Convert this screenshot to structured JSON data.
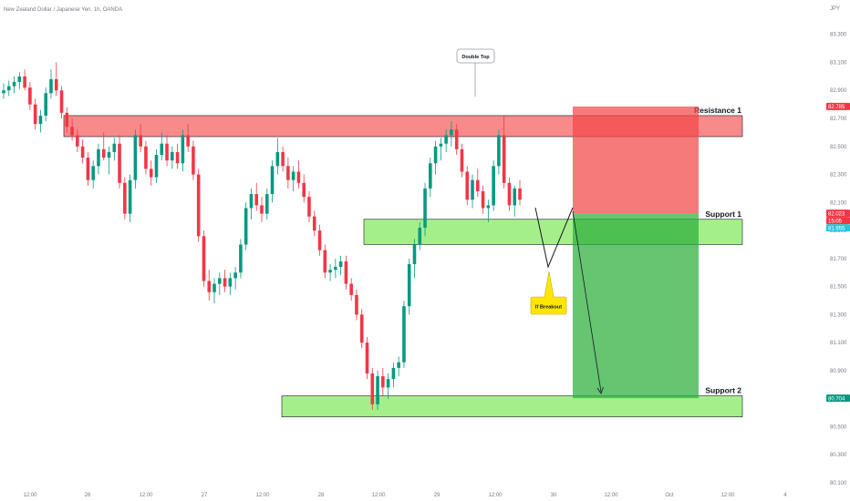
{
  "chart_data": {
    "type": "candlestick",
    "title": "New Zealand Dollar / Japanese Yen, 1h, OANDA",
    "currency_label": "JPY",
    "x_ticks": [
      "12:00",
      "26",
      "12:00",
      "27",
      "12:00",
      "28",
      "12:00",
      "29",
      "12:00",
      "30",
      "12:00",
      "Oct",
      "12:00",
      "4"
    ],
    "y_ticks": [
      "83.300",
      "83.100",
      "82.900",
      "82.700",
      "82.500",
      "82.300",
      "82.100",
      "81.900",
      "81.700",
      "81.500",
      "81.300",
      "81.100",
      "80.900",
      "80.700",
      "80.500",
      "80.300",
      "80.100"
    ],
    "ylim": [
      80.1,
      83.35
    ],
    "candles": [
      [
        82.88,
        82.95,
        82.84,
        82.9
      ],
      [
        82.9,
        82.97,
        82.86,
        82.93
      ],
      [
        82.93,
        83.0,
        82.88,
        82.96
      ],
      [
        82.96,
        83.03,
        82.91,
        83.0
      ],
      [
        83.0,
        83.05,
        82.9,
        82.92
      ],
      [
        82.92,
        82.96,
        82.76,
        82.8
      ],
      [
        82.8,
        82.84,
        82.62,
        82.66
      ],
      [
        82.66,
        82.76,
        82.6,
        82.72
      ],
      [
        82.72,
        82.92,
        82.68,
        82.88
      ],
      [
        82.88,
        83.05,
        82.84,
        82.98
      ],
      [
        82.98,
        83.1,
        82.86,
        82.9
      ],
      [
        82.9,
        82.93,
        82.7,
        82.74
      ],
      [
        82.74,
        82.78,
        82.6,
        82.64
      ],
      [
        82.64,
        82.7,
        82.54,
        82.58
      ],
      [
        82.58,
        82.62,
        82.46,
        82.5
      ],
      [
        82.5,
        82.55,
        82.38,
        82.42
      ],
      [
        82.42,
        82.46,
        82.22,
        82.26
      ],
      [
        82.26,
        82.4,
        82.2,
        82.36
      ],
      [
        82.36,
        82.52,
        82.3,
        82.48
      ],
      [
        82.48,
        82.6,
        82.4,
        82.42
      ],
      [
        82.42,
        82.5,
        82.3,
        82.46
      ],
      [
        82.46,
        82.56,
        82.4,
        82.52
      ],
      [
        82.52,
        82.58,
        82.2,
        82.24
      ],
      [
        82.24,
        82.28,
        81.98,
        82.02
      ],
      [
        82.02,
        82.3,
        81.96,
        82.26
      ],
      [
        82.26,
        82.62,
        82.2,
        82.58
      ],
      [
        82.58,
        82.66,
        82.46,
        82.5
      ],
      [
        82.5,
        82.54,
        82.3,
        82.34
      ],
      [
        82.34,
        82.4,
        82.22,
        82.28
      ],
      [
        82.28,
        82.48,
        82.24,
        82.44
      ],
      [
        82.44,
        82.6,
        82.4,
        82.52
      ],
      [
        82.52,
        82.58,
        82.36,
        82.4
      ],
      [
        82.4,
        82.5,
        82.34,
        82.46
      ],
      [
        82.46,
        82.52,
        82.34,
        82.38
      ],
      [
        82.38,
        82.62,
        82.32,
        82.58
      ],
      [
        82.58,
        82.66,
        82.46,
        82.5
      ],
      [
        82.5,
        82.54,
        82.26,
        82.3
      ],
      [
        82.3,
        82.34,
        81.82,
        81.86
      ],
      [
        81.86,
        81.9,
        81.5,
        81.54
      ],
      [
        81.54,
        81.62,
        81.4,
        81.46
      ],
      [
        81.46,
        81.56,
        81.38,
        81.52
      ],
      [
        81.52,
        81.6,
        81.44,
        81.56
      ],
      [
        81.56,
        81.62,
        81.46,
        81.5
      ],
      [
        81.5,
        81.6,
        81.44,
        81.56
      ],
      [
        81.56,
        81.64,
        81.48,
        81.6
      ],
      [
        81.6,
        81.84,
        81.56,
        81.8
      ],
      [
        81.8,
        82.1,
        81.76,
        82.06
      ],
      [
        82.06,
        82.2,
        81.98,
        82.16
      ],
      [
        82.16,
        82.24,
        82.04,
        82.08
      ],
      [
        82.08,
        82.14,
        81.96,
        82.02
      ],
      [
        82.02,
        82.2,
        81.98,
        82.16
      ],
      [
        82.16,
        82.4,
        82.1,
        82.36
      ],
      [
        82.36,
        82.56,
        82.3,
        82.46
      ],
      [
        82.46,
        82.5,
        82.32,
        82.36
      ],
      [
        82.36,
        82.42,
        82.2,
        82.26
      ],
      [
        82.26,
        82.36,
        82.18,
        82.32
      ],
      [
        82.32,
        82.4,
        82.2,
        82.24
      ],
      [
        82.24,
        82.3,
        82.1,
        82.14
      ],
      [
        82.14,
        82.18,
        81.96,
        82.0
      ],
      [
        82.0,
        82.04,
        81.86,
        81.9
      ],
      [
        81.9,
        81.94,
        81.72,
        81.76
      ],
      [
        81.76,
        81.8,
        81.56,
        81.6
      ],
      [
        81.6,
        81.66,
        81.54,
        81.62
      ],
      [
        81.62,
        81.7,
        81.56,
        81.64
      ],
      [
        81.64,
        81.72,
        81.58,
        81.68
      ],
      [
        81.68,
        81.72,
        81.48,
        81.52
      ],
      [
        81.52,
        81.56,
        81.4,
        81.44
      ],
      [
        81.44,
        81.48,
        81.26,
        81.3
      ],
      [
        81.3,
        81.34,
        81.06,
        81.1
      ],
      [
        81.1,
        81.14,
        80.84,
        80.88
      ],
      [
        80.88,
        80.92,
        80.62,
        80.66
      ],
      [
        80.66,
        80.9,
        80.62,
        80.86
      ],
      [
        80.86,
        80.92,
        80.72,
        80.78
      ],
      [
        80.78,
        80.88,
        80.7,
        80.84
      ],
      [
        80.84,
        80.96,
        80.78,
        80.92
      ],
      [
        80.92,
        81.0,
        80.86,
        80.96
      ],
      [
        80.96,
        81.4,
        80.92,
        81.36
      ],
      [
        81.36,
        81.7,
        81.3,
        81.66
      ],
      [
        81.66,
        81.84,
        81.56,
        81.8
      ],
      [
        81.8,
        81.96,
        81.76,
        81.92
      ],
      [
        81.92,
        82.24,
        81.86,
        82.2
      ],
      [
        82.2,
        82.42,
        82.14,
        82.38
      ],
      [
        82.38,
        82.54,
        82.3,
        82.5
      ],
      [
        82.5,
        82.56,
        82.4,
        82.52
      ],
      [
        82.52,
        82.62,
        82.46,
        82.58
      ],
      [
        82.58,
        82.68,
        82.5,
        82.62
      ],
      [
        82.62,
        82.66,
        82.44,
        82.48
      ],
      [
        82.48,
        82.52,
        82.28,
        82.32
      ],
      [
        82.32,
        82.36,
        82.08,
        82.12
      ],
      [
        82.12,
        82.3,
        82.06,
        82.26
      ],
      [
        82.26,
        82.34,
        82.14,
        82.18
      ],
      [
        82.18,
        82.22,
        82.02,
        82.06
      ],
      [
        82.06,
        82.12,
        81.96,
        82.08
      ],
      [
        82.08,
        82.4,
        82.04,
        82.36
      ],
      [
        82.36,
        82.62,
        82.3,
        82.58
      ],
      [
        82.58,
        82.72,
        82.2,
        82.24
      ],
      [
        82.24,
        82.28,
        82.04,
        82.08
      ],
      [
        82.08,
        82.22,
        82.0,
        82.2
      ],
      [
        82.2,
        82.26,
        82.08,
        82.12
      ]
    ],
    "zones": [
      {
        "name": "Resistance 1",
        "top": 82.72,
        "bottom": 82.57,
        "type": "resistance"
      },
      {
        "name": "Support 1",
        "top": 81.98,
        "bottom": 81.8,
        "type": "support"
      },
      {
        "name": "Support 2",
        "top": 80.72,
        "bottom": 80.57,
        "type": "support"
      }
    ],
    "annotations": {
      "double_top": "Double Top",
      "if_breakout": "If Breakout"
    },
    "trade": {
      "stop": 82.785,
      "entry": 82.023,
      "target": 80.704
    },
    "price_badges": [
      {
        "label": "82.785",
        "value": 82.785,
        "color": "#f23645"
      },
      {
        "label": "82.023",
        "value": 82.023,
        "color": "#f23645"
      },
      {
        "label": "15:05",
        "value": 81.98,
        "color": "#f23645"
      },
      {
        "label": "81.955",
        "value": 81.955,
        "color": "#26c6da"
      },
      {
        "label": "80.704",
        "value": 80.704,
        "color": "#089981"
      }
    ],
    "colors": {
      "up": "#089981",
      "down": "#f23645",
      "resistance_fill": "#f88a8a",
      "support_fill": "#a5ef8b",
      "risk_fill": "#f44747",
      "reward_fill": "#2aae3a",
      "callout_fill": "#ffe600"
    }
  }
}
